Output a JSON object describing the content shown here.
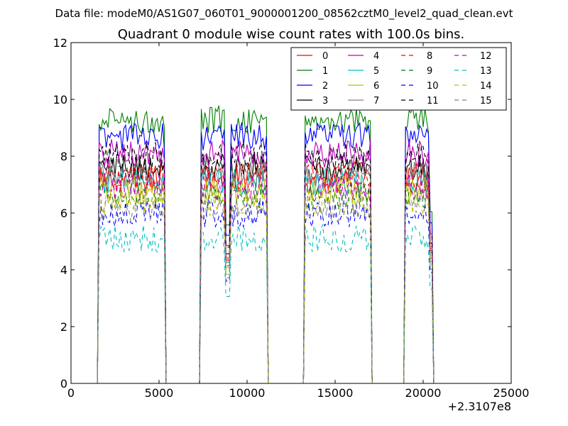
{
  "figure": {
    "suptitle": "Data file: modeM0/AS1G07_060T01_9000001200_08562cztM0_level2_quad_clean.evt"
  },
  "chart_data": {
    "type": "line",
    "title": "Quadrant 0 module wise count rates with 100.0s bins.",
    "xlabel": "",
    "ylabel": "",
    "x_offset_label": "+2.3107e8",
    "xlim": [
      0,
      25000
    ],
    "ylim": [
      0,
      12
    ],
    "xticks": [
      0,
      5000,
      10000,
      15000,
      20000,
      25000
    ],
    "yticks": [
      0,
      2,
      4,
      6,
      8,
      10,
      12
    ],
    "grid": false,
    "legend_location": "upper right",
    "legend_columns": 4,
    "active_segments": [
      [
        1600,
        5300
      ],
      [
        7400,
        11100
      ],
      [
        13300,
        17000
      ],
      [
        19000,
        20500
      ]
    ],
    "gap_value": 0,
    "series": [
      {
        "name": "0",
        "color": "#ff0000",
        "dash": "solid",
        "level": 7.3
      },
      {
        "name": "1",
        "color": "#008000",
        "dash": "solid",
        "level": 9.3
      },
      {
        "name": "2",
        "color": "#0000ff",
        "dash": "solid",
        "level": 8.7
      },
      {
        "name": "3",
        "color": "#000000",
        "dash": "solid",
        "level": 7.6
      },
      {
        "name": "4",
        "color": "#bf00bf",
        "dash": "solid",
        "level": 8.1
      },
      {
        "name": "5",
        "color": "#00bfbf",
        "dash": "solid",
        "level": 7.1
      },
      {
        "name": "6",
        "color": "#bfbf00",
        "dash": "solid",
        "level": 6.8
      },
      {
        "name": "7",
        "color": "#808080",
        "dash": "solid",
        "level": 7.4
      },
      {
        "name": "8",
        "color": "#ff0000",
        "dash": "dashed",
        "level": 7.2
      },
      {
        "name": "9",
        "color": "#008000",
        "dash": "dashed",
        "level": 6.6
      },
      {
        "name": "10",
        "color": "#0000ff",
        "dash": "dashed",
        "level": 6.0
      },
      {
        "name": "11",
        "color": "#000000",
        "dash": "dashed",
        "level": 8.0
      },
      {
        "name": "12",
        "color": "#bf00bf",
        "dash": "dashed",
        "level": 6.9
      },
      {
        "name": "13",
        "color": "#00bfbf",
        "dash": "dashed",
        "level": 5.1
      },
      {
        "name": "14",
        "color": "#bfbf00",
        "dash": "dashed",
        "level": 6.4
      },
      {
        "name": "15",
        "color": "#808080",
        "dash": "dashed",
        "level": 6.2
      }
    ]
  }
}
